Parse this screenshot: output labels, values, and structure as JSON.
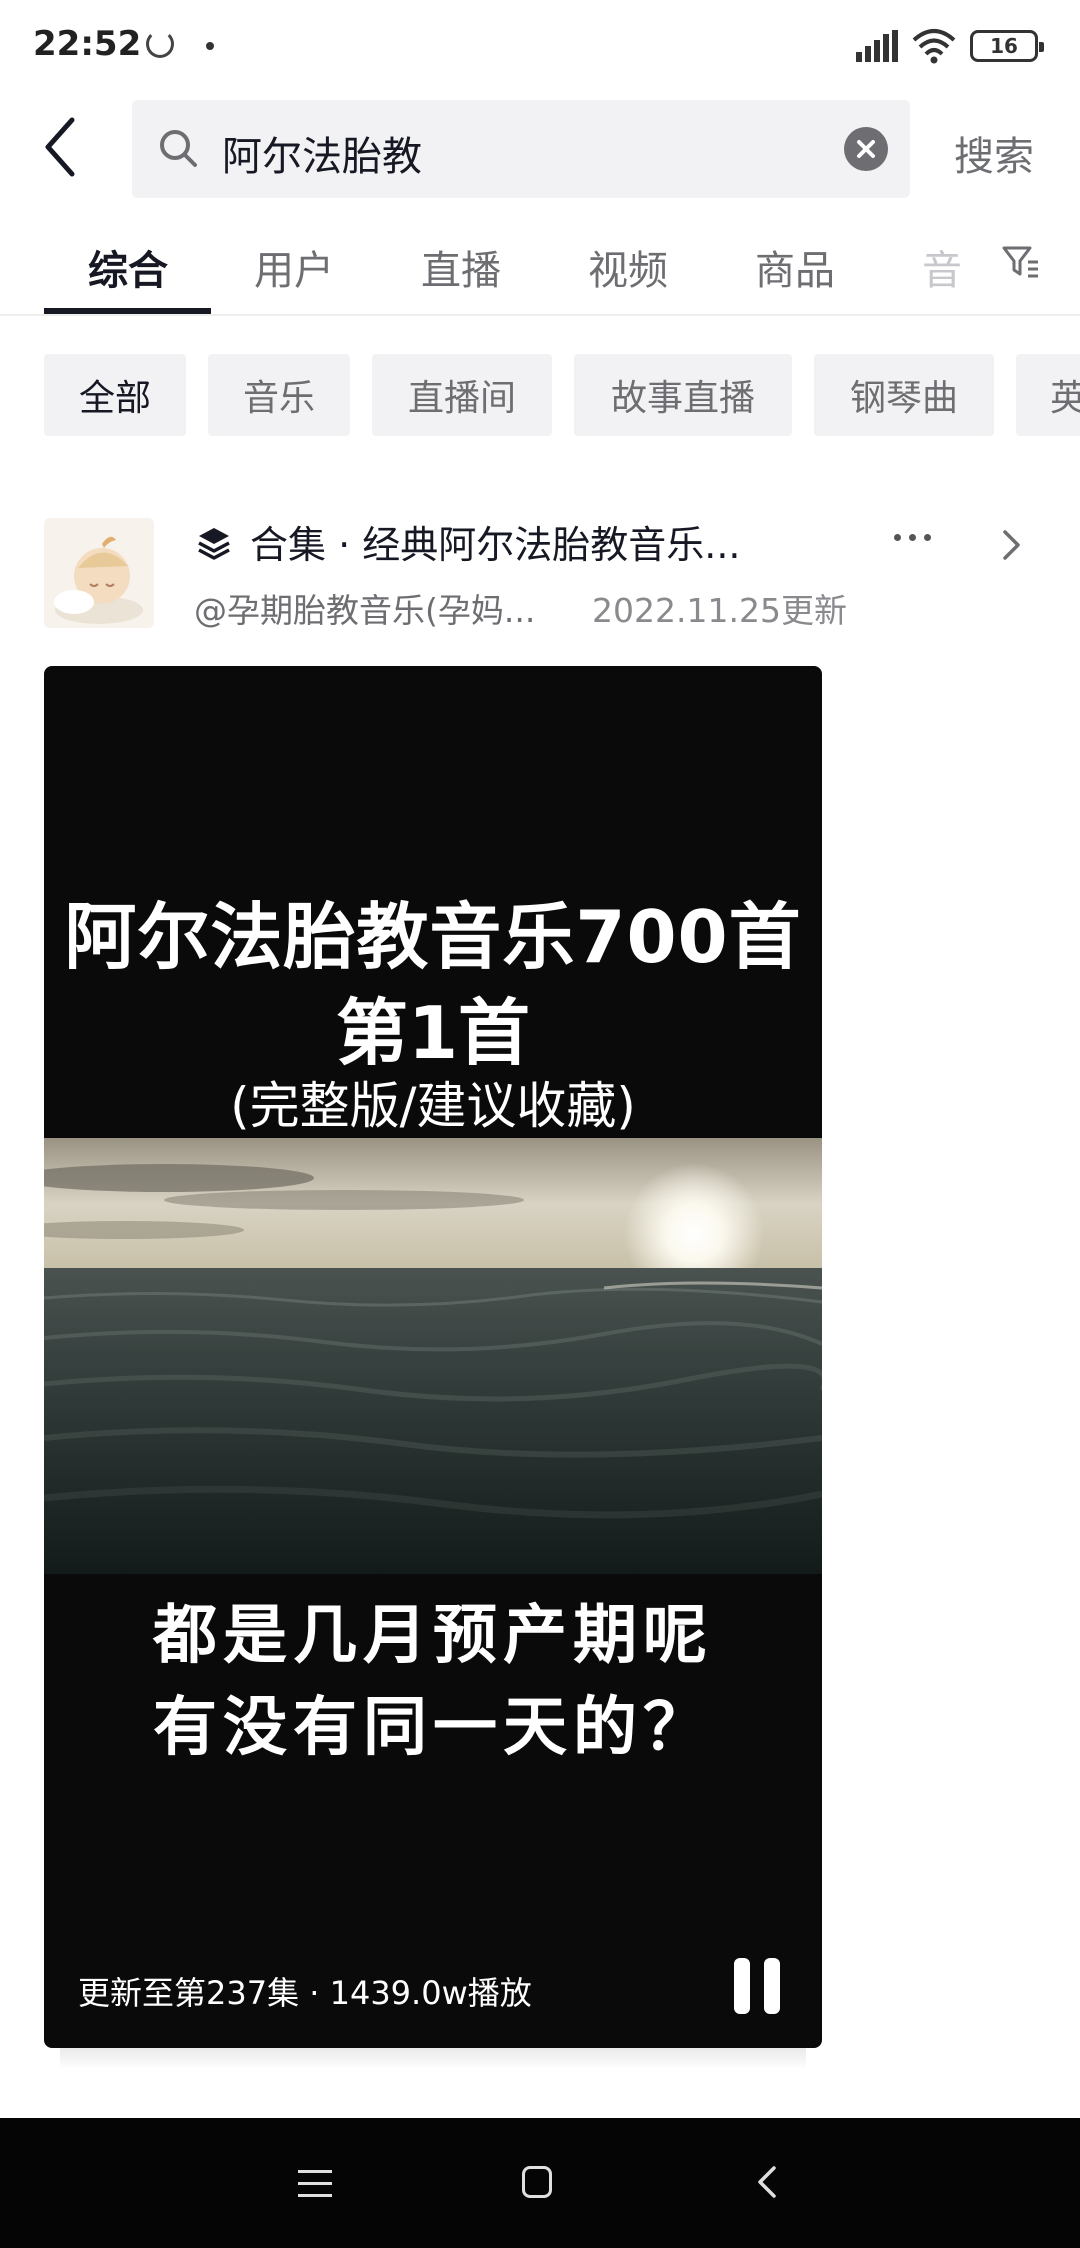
{
  "status_bar": {
    "time": "22:52",
    "battery": "16"
  },
  "search": {
    "query": "阿尔法胎教",
    "submit_label": "搜索"
  },
  "tabs": [
    {
      "label": "综合",
      "active": true
    },
    {
      "label": "用户"
    },
    {
      "label": "直播"
    },
    {
      "label": "视频"
    },
    {
      "label": "商品"
    },
    {
      "label": "音"
    }
  ],
  "chips": [
    {
      "label": "全部",
      "active": true
    },
    {
      "label": "音乐"
    },
    {
      "label": "直播间"
    },
    {
      "label": "故事直播"
    },
    {
      "label": "钢琴曲"
    },
    {
      "label": "英"
    }
  ],
  "collection": {
    "title": "合集 · 经典阿尔法胎教音乐...",
    "author": "@孕期胎教音乐(孕妈...",
    "updated": "2022.11.25更新"
  },
  "video": {
    "title_line1": "阿尔法胎教音乐700首",
    "title_line2": "第1首",
    "title_line3": "(完整版/建议收藏)",
    "caption_line1": "都是几月预产期呢",
    "caption_line2": "有没有同一天的？",
    "footer": "更新至第237集 · 1439.0w播放"
  },
  "icons": {
    "back": "back-arrow-icon",
    "search": "search-icon",
    "clear": "clear-icon",
    "filter": "filter-icon",
    "collection": "layers-icon",
    "more": "more-icon",
    "chevron": "chevron-right-icon",
    "pause": "pause-icon"
  },
  "colors": {
    "text_primary": "#161823",
    "text_secondary": "#6e6e72",
    "chip_bg": "#f2f2f4",
    "video_bg": "#0a0a0a"
  }
}
